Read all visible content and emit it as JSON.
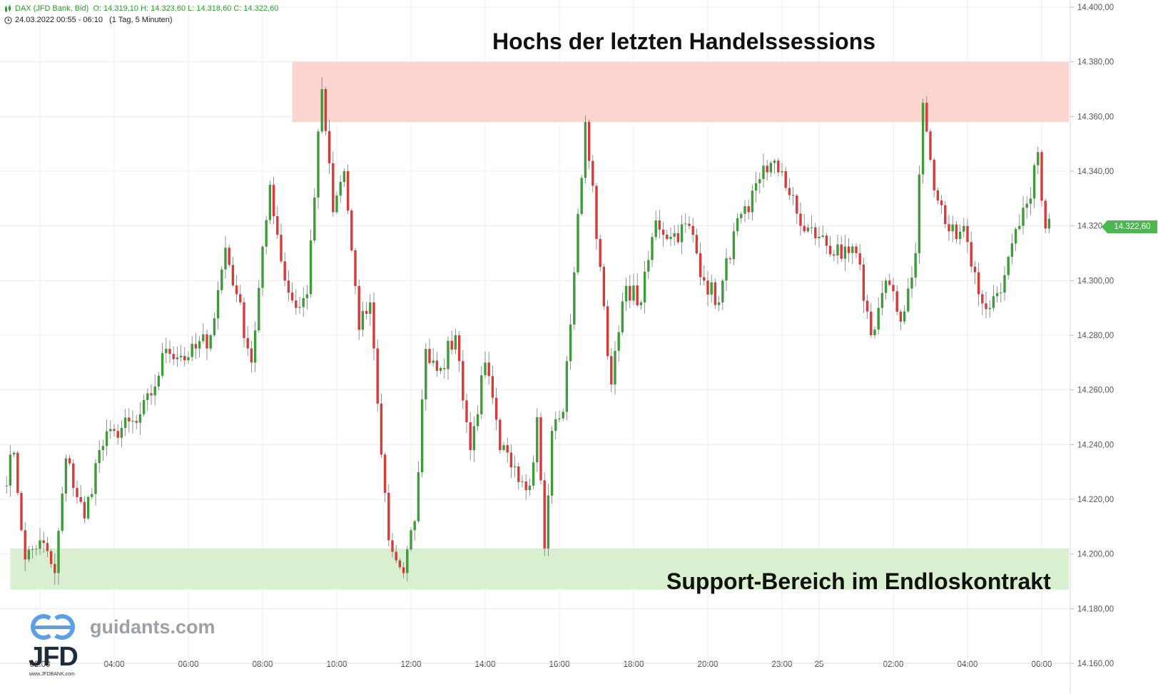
{
  "header": {
    "instrument": "DAX (JFD Bank, Bid)",
    "ohlc": "O: 14.319,10  H: 14.323,60  L: 14.318,60  C: 14.322,60",
    "range": "24.03.2022 00:55 - 06:10",
    "interval": "(1 Tag, 5 Minuten)"
  },
  "annotations": {
    "top_zone_label": "Hochs der letzten Handelssessions",
    "bottom_zone_label": "Support-Bereich im Endloskontrakt"
  },
  "watermark": {
    "site": "guidants.com",
    "brand": "JFD",
    "brand_sub": "www.JFDBANK.com"
  },
  "current_price_label": "14.322,60",
  "colors": {
    "up": "#3f9a3a",
    "down": "#d63a3a",
    "resistance_zone": "#fcd5d0",
    "support_zone": "#d8f0cf",
    "price_tag": "#49b84f",
    "grid": "#ececec"
  },
  "chart_data": {
    "type": "candlestick",
    "title": "",
    "xlabel": "",
    "ylabel": "",
    "ylim": [
      14160,
      14400
    ],
    "y_ticks": [
      14160,
      14180,
      14200,
      14220,
      14240,
      14260,
      14280,
      14300,
      14320,
      14340,
      14360,
      14380,
      14400
    ],
    "y_tick_labels": [
      "14.160,00",
      "14.180,00",
      "14.200,00",
      "14.220,00",
      "14.240,00",
      "14.260,00",
      "14.280,00",
      "14.300,00",
      "14.320,00",
      "14.340,00",
      "14.360,00",
      "14.380,00",
      "14.400,00"
    ],
    "x_ticks": [
      {
        "label": "02:00",
        "bar": 10
      },
      {
        "label": "04:00",
        "bar": 30
      },
      {
        "label": "06:00",
        "bar": 50
      },
      {
        "label": "08:00",
        "bar": 70
      },
      {
        "label": "10:00",
        "bar": 90
      },
      {
        "label": "12:00",
        "bar": 110
      },
      {
        "label": "14:00",
        "bar": 130
      },
      {
        "label": "16:00",
        "bar": 150
      },
      {
        "label": "18:00",
        "bar": 170
      },
      {
        "label": "20:00",
        "bar": 190
      },
      {
        "label": "23:00",
        "bar": 210
      },
      {
        "label": "25",
        "bar": 220
      },
      {
        "label": "02:00",
        "bar": 240
      },
      {
        "label": "04:00",
        "bar": 260
      },
      {
        "label": "06:00",
        "bar": 280
      }
    ],
    "grid": true,
    "zones": [
      {
        "name": "resistance",
        "from": 14358,
        "to": 14380,
        "start_bar": 78,
        "end_bar": 289
      },
      {
        "name": "support",
        "from": 14187,
        "to": 14202,
        "start_bar": 2,
        "end_bar": 289
      }
    ],
    "last_price": 14322.6,
    "waypoints": [
      [
        0,
        14225
      ],
      [
        3,
        14237
      ],
      [
        6,
        14198
      ],
      [
        10,
        14205
      ],
      [
        14,
        14193
      ],
      [
        17,
        14235
      ],
      [
        22,
        14213
      ],
      [
        26,
        14238
      ],
      [
        30,
        14245
      ],
      [
        36,
        14248
      ],
      [
        40,
        14258
      ],
      [
        44,
        14275
      ],
      [
        50,
        14272
      ],
      [
        56,
        14280
      ],
      [
        60,
        14312
      ],
      [
        63,
        14295
      ],
      [
        67,
        14270
      ],
      [
        72,
        14335
      ],
      [
        76,
        14300
      ],
      [
        79,
        14290
      ],
      [
        82,
        14295
      ],
      [
        86,
        14370
      ],
      [
        89,
        14325
      ],
      [
        92,
        14340
      ],
      [
        96,
        14282
      ],
      [
        99,
        14292
      ],
      [
        101,
        14255
      ],
      [
        104,
        14205
      ],
      [
        108,
        14193
      ],
      [
        111,
        14212
      ],
      [
        114,
        14275
      ],
      [
        118,
        14268
      ],
      [
        122,
        14280
      ],
      [
        126,
        14238
      ],
      [
        130,
        14270
      ],
      [
        134,
        14238
      ],
      [
        138,
        14232
      ],
      [
        142,
        14225
      ],
      [
        144,
        14250
      ],
      [
        146,
        14202
      ],
      [
        148,
        14245
      ],
      [
        151,
        14252
      ],
      [
        154,
        14303
      ],
      [
        157,
        14358
      ],
      [
        161,
        14305
      ],
      [
        164,
        14262
      ],
      [
        168,
        14298
      ],
      [
        172,
        14292
      ],
      [
        176,
        14322
      ],
      [
        180,
        14316
      ],
      [
        185,
        14320
      ],
      [
        189,
        14300
      ],
      [
        193,
        14292
      ],
      [
        197,
        14318
      ],
      [
        201,
        14325
      ],
      [
        205,
        14342
      ],
      [
        210,
        14340
      ],
      [
        215,
        14320
      ],
      [
        220,
        14316
      ],
      [
        226,
        14308
      ],
      [
        230,
        14310
      ],
      [
        234,
        14280
      ],
      [
        238,
        14300
      ],
      [
        242,
        14285
      ],
      [
        246,
        14310
      ],
      [
        248,
        14365
      ],
      [
        251,
        14333
      ],
      [
        255,
        14318
      ],
      [
        259,
        14320
      ],
      [
        263,
        14295
      ],
      [
        266,
        14290
      ],
      [
        270,
        14302
      ],
      [
        274,
        14320
      ],
      [
        277,
        14330
      ],
      [
        279,
        14347
      ],
      [
        281,
        14319
      ],
      [
        282,
        14322
      ]
    ]
  }
}
